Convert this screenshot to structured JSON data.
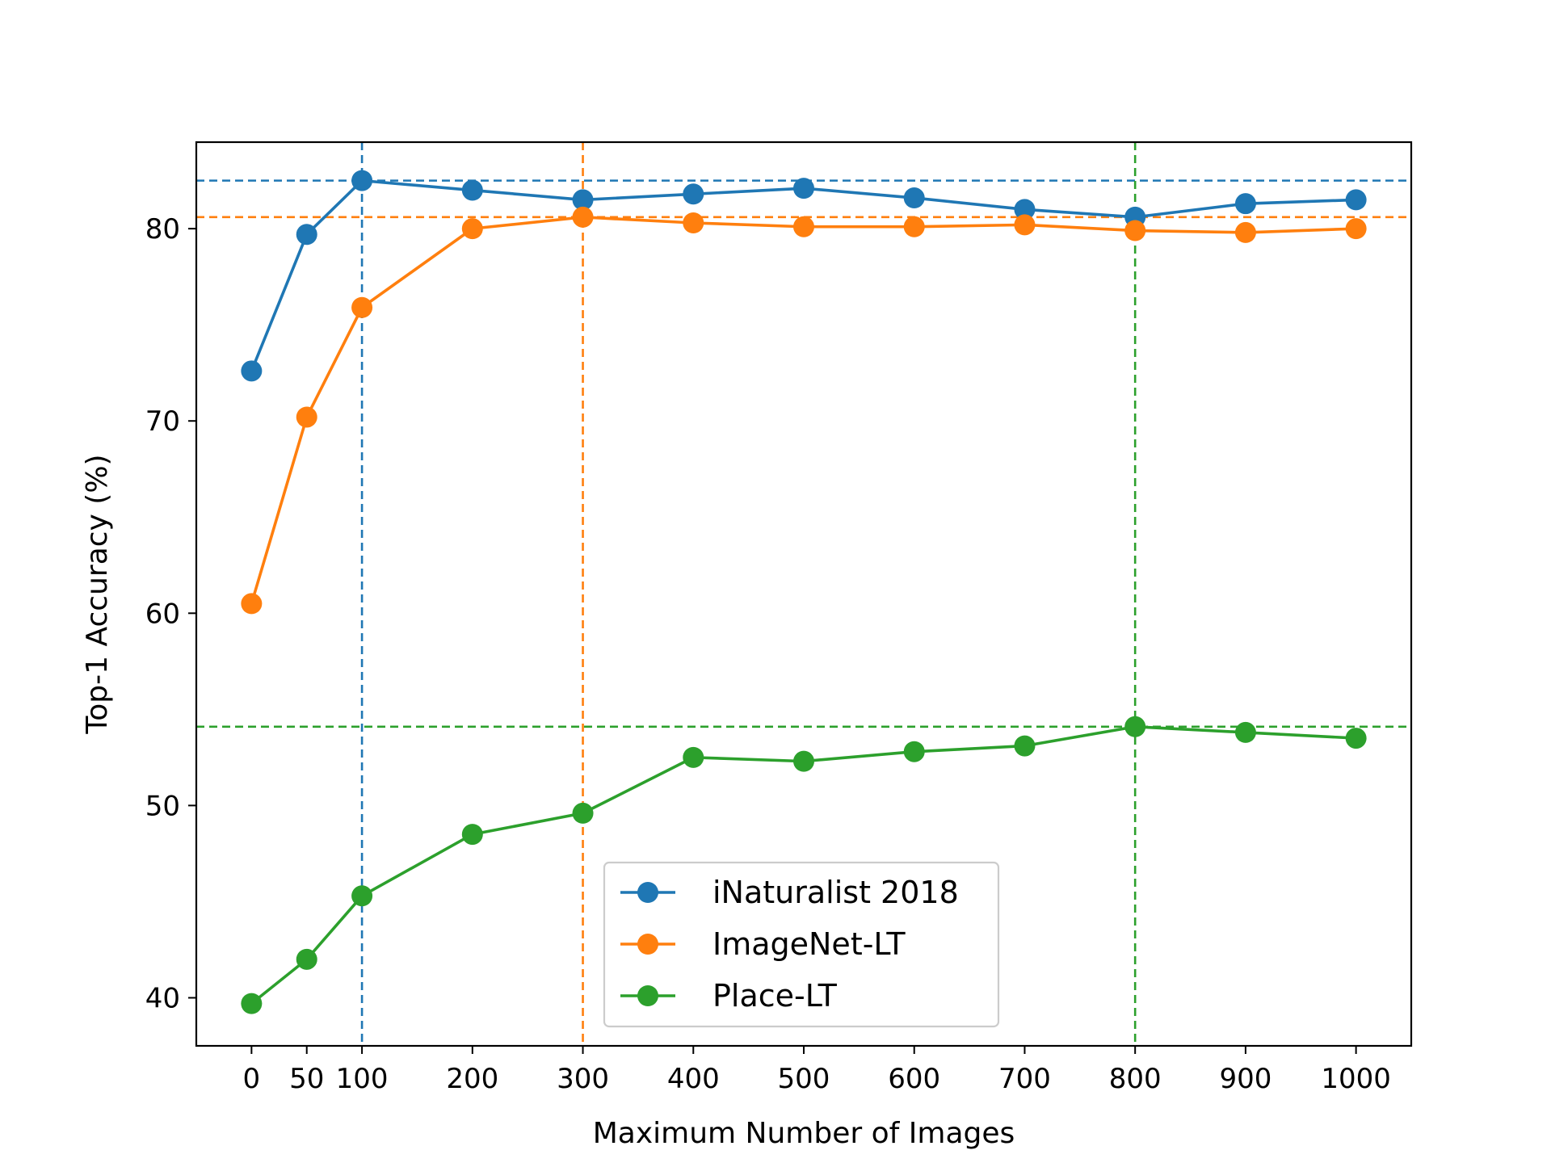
{
  "chart_data": {
    "type": "line",
    "title": "",
    "xlabel": "Maximum Number of Images",
    "ylabel": "Top-1 Accuracy (%)",
    "x": [
      0,
      50,
      100,
      200,
      300,
      400,
      500,
      600,
      700,
      800,
      900,
      1000
    ],
    "x_ticks": [
      0,
      50,
      100,
      200,
      300,
      400,
      500,
      600,
      700,
      800,
      900,
      1000
    ],
    "y_ticks": [
      40,
      50,
      60,
      70,
      80
    ],
    "xlim": [
      -50,
      1050
    ],
    "ylim": [
      37.5,
      84.5
    ],
    "grid": false,
    "legend_position": "lower-center",
    "series": [
      {
        "name": "iNaturalist 2018",
        "color": "#1f77b4",
        "values": [
          72.6,
          79.7,
          82.5,
          82.0,
          81.5,
          81.8,
          82.1,
          81.6,
          81.0,
          80.6,
          81.3,
          81.5
        ],
        "best": {
          "x": 100,
          "y": 82.5
        }
      },
      {
        "name": "ImageNet-LT",
        "color": "#ff7f0e",
        "values": [
          60.5,
          70.2,
          75.9,
          80.0,
          80.6,
          80.3,
          80.1,
          80.1,
          80.2,
          79.9,
          79.8,
          80.0
        ],
        "best": {
          "x": 300,
          "y": 80.6
        }
      },
      {
        "name": "Place-LT",
        "color": "#2ca02c",
        "values": [
          39.7,
          42.0,
          45.3,
          48.5,
          49.6,
          52.5,
          52.3,
          52.8,
          53.1,
          54.1,
          53.8,
          53.5
        ],
        "best": {
          "x": 800,
          "y": 54.1
        }
      }
    ]
  }
}
